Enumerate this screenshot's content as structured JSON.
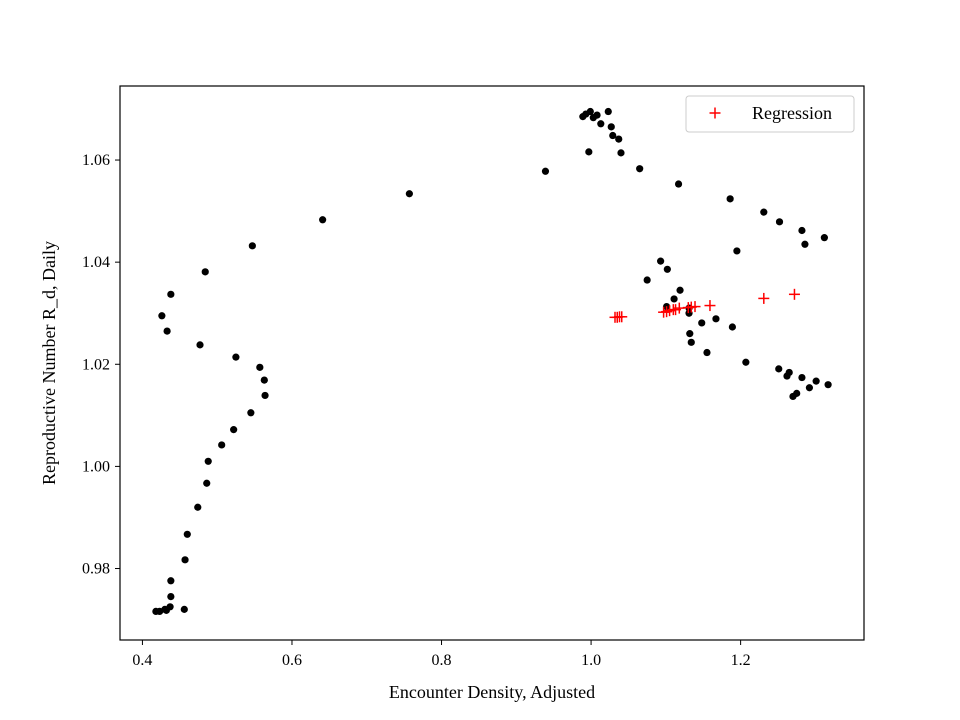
{
  "chart_data": {
    "type": "scatter",
    "title": "",
    "xlabel": "Encounter Density, Adjusted",
    "ylabel": "Reproductive Number R_d, Daily",
    "xlim": [
      0.37,
      1.365
    ],
    "ylim": [
      0.966,
      1.0745
    ],
    "x_ticks": [
      0.4,
      0.6,
      0.8,
      1.0,
      1.2
    ],
    "x_tick_labels": [
      "0.4",
      "0.6",
      "0.8",
      "1.0",
      "1.2"
    ],
    "y_ticks": [
      0.98,
      1.0,
      1.02,
      1.04,
      1.06
    ],
    "y_tick_labels": [
      "0.98",
      "1.00",
      "1.02",
      "1.04",
      "1.06"
    ],
    "grid": false,
    "legend_position": "top-right",
    "series": [
      {
        "marker": "dot",
        "color": "#000000",
        "x": [
          0.418,
          0.423,
          0.43,
          0.432,
          0.437,
          0.438,
          0.438,
          0.456,
          0.457,
          0.46,
          0.474,
          0.486,
          0.488,
          0.506,
          0.522,
          0.545,
          0.557,
          0.563,
          0.564,
          0.525,
          0.477,
          0.433,
          0.426,
          0.438,
          0.484,
          0.547,
          0.641,
          0.757,
          0.939,
          0.989,
          0.993,
          0.997,
          0.999,
          1.003,
          1.008,
          1.013,
          1.023,
          1.027,
          1.029,
          1.037,
          1.04,
          1.065,
          1.117,
          1.186,
          1.231,
          1.252,
          1.282,
          1.286,
          1.312,
          1.195,
          1.093,
          1.102,
          1.075,
          1.101,
          1.111,
          1.119,
          1.131,
          1.131,
          1.132,
          1.134,
          1.148,
          1.155,
          1.167,
          1.189,
          1.207,
          1.251,
          1.262,
          1.265,
          1.27,
          1.275,
          1.282,
          1.292,
          1.301,
          1.317
        ],
        "y": [
          0.9716,
          0.9716,
          0.972,
          0.9718,
          0.9725,
          0.9745,
          0.9776,
          0.972,
          0.9817,
          0.9867,
          0.992,
          0.9967,
          1.001,
          1.0042,
          1.0072,
          1.0105,
          1.0194,
          1.0169,
          1.0139,
          1.0214,
          1.0238,
          1.0265,
          1.0295,
          1.0337,
          1.0381,
          1.0432,
          1.0483,
          1.0534,
          1.0578,
          1.0685,
          1.069,
          1.0616,
          1.0695,
          1.0683,
          1.0688,
          1.0671,
          1.0695,
          1.0665,
          1.0648,
          1.0641,
          1.0614,
          1.0583,
          1.0553,
          1.0524,
          1.0498,
          1.0479,
          1.0462,
          1.0435,
          1.0448,
          1.0422,
          1.0402,
          1.0386,
          1.0365,
          1.0313,
          1.0328,
          1.0345,
          1.031,
          1.03,
          1.026,
          1.0243,
          1.0281,
          1.0223,
          1.0289,
          1.0273,
          1.0204,
          1.0191,
          1.0177,
          1.0184,
          1.0137,
          1.0143,
          1.0174,
          1.0154,
          1.0167,
          1.016
        ]
      },
      {
        "name": "Regression",
        "marker": "plus",
        "color": "#ff0000",
        "x": [
          1.032,
          1.035,
          1.038,
          1.041,
          1.097,
          1.101,
          1.105,
          1.11,
          1.113,
          1.118,
          1.13,
          1.134,
          1.139,
          1.159,
          1.231,
          1.272
        ],
        "y": [
          1.0292,
          1.0292,
          1.0293,
          1.0293,
          1.0302,
          1.0303,
          1.0305,
          1.0307,
          1.0307,
          1.031,
          1.0311,
          1.0312,
          1.0313,
          1.0315,
          1.0329,
          1.0337
        ]
      }
    ]
  }
}
